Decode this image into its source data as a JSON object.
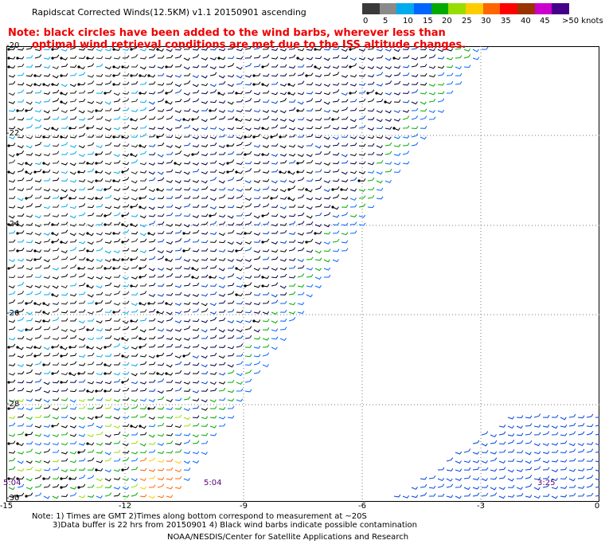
{
  "header": {
    "title": "Rapidscat Corrected Winds(12.5KM) v1.1 20150901 ascending",
    "note_line1": "Note: black circles have been added to the wind barbs, wherever less than",
    "note_line2": "optimal wind retrieval conditions are met due to the ISS altitude changes."
  },
  "color_scale": {
    "labels": [
      "0",
      "5",
      "10",
      "15",
      "20",
      "25",
      "30",
      "35",
      "40",
      "45",
      ">50 knots"
    ],
    "colors": [
      "#3a3a3a",
      "#8a8a8a",
      "#00aaee",
      "#0066ff",
      "#00aa00",
      "#99dd00",
      "#ffcc00",
      "#ff6600",
      "#ff0000",
      "#993300",
      "#cc00cc",
      "#440088"
    ]
  },
  "map": {
    "x_ticks": [
      "-15",
      "-12",
      "-9",
      "-6",
      "-3",
      "0"
    ],
    "y_ticks": [
      "-20",
      "-22",
      "-24",
      "-26",
      "-28",
      "-30"
    ],
    "pass_times": [
      "5:04",
      "5:04",
      "3:25"
    ]
  },
  "footer": {
    "line1": "Note: 1) Times are GMT 2)Times along bottom correspond to measurement at ~20S",
    "line2": "3)Data buffer is 22 hrs from 20150901 4) Black wind barbs indicate possible contamination",
    "credit": "NOAA/NESDIS/Center for Satellite Applications and Research"
  }
}
